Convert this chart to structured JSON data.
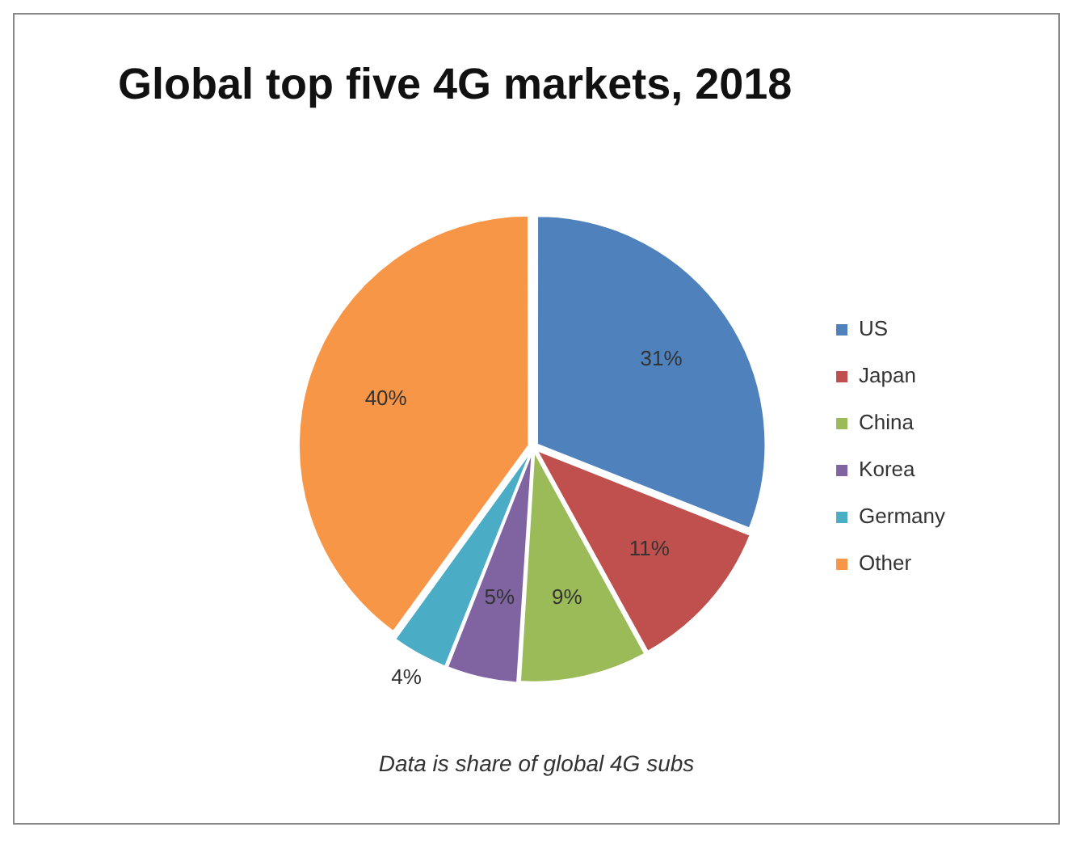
{
  "chart_data": {
    "type": "pie",
    "title": "Global top five 4G markets, 2018",
    "categories": [
      "US",
      "Japan",
      "China",
      "Korea",
      "Germany",
      "Other"
    ],
    "values": [
      31,
      11,
      9,
      5,
      4,
      40
    ],
    "colors": [
      "#4f81bd",
      "#c0504d",
      "#9bbb59",
      "#8064a2",
      "#4bacc6",
      "#f79646"
    ],
    "value_labels": [
      "31%",
      "11%",
      "9%",
      "5%",
      "4%",
      "40%"
    ],
    "legend": "right",
    "annotations": [
      "Data is share of global 4G subs"
    ]
  }
}
